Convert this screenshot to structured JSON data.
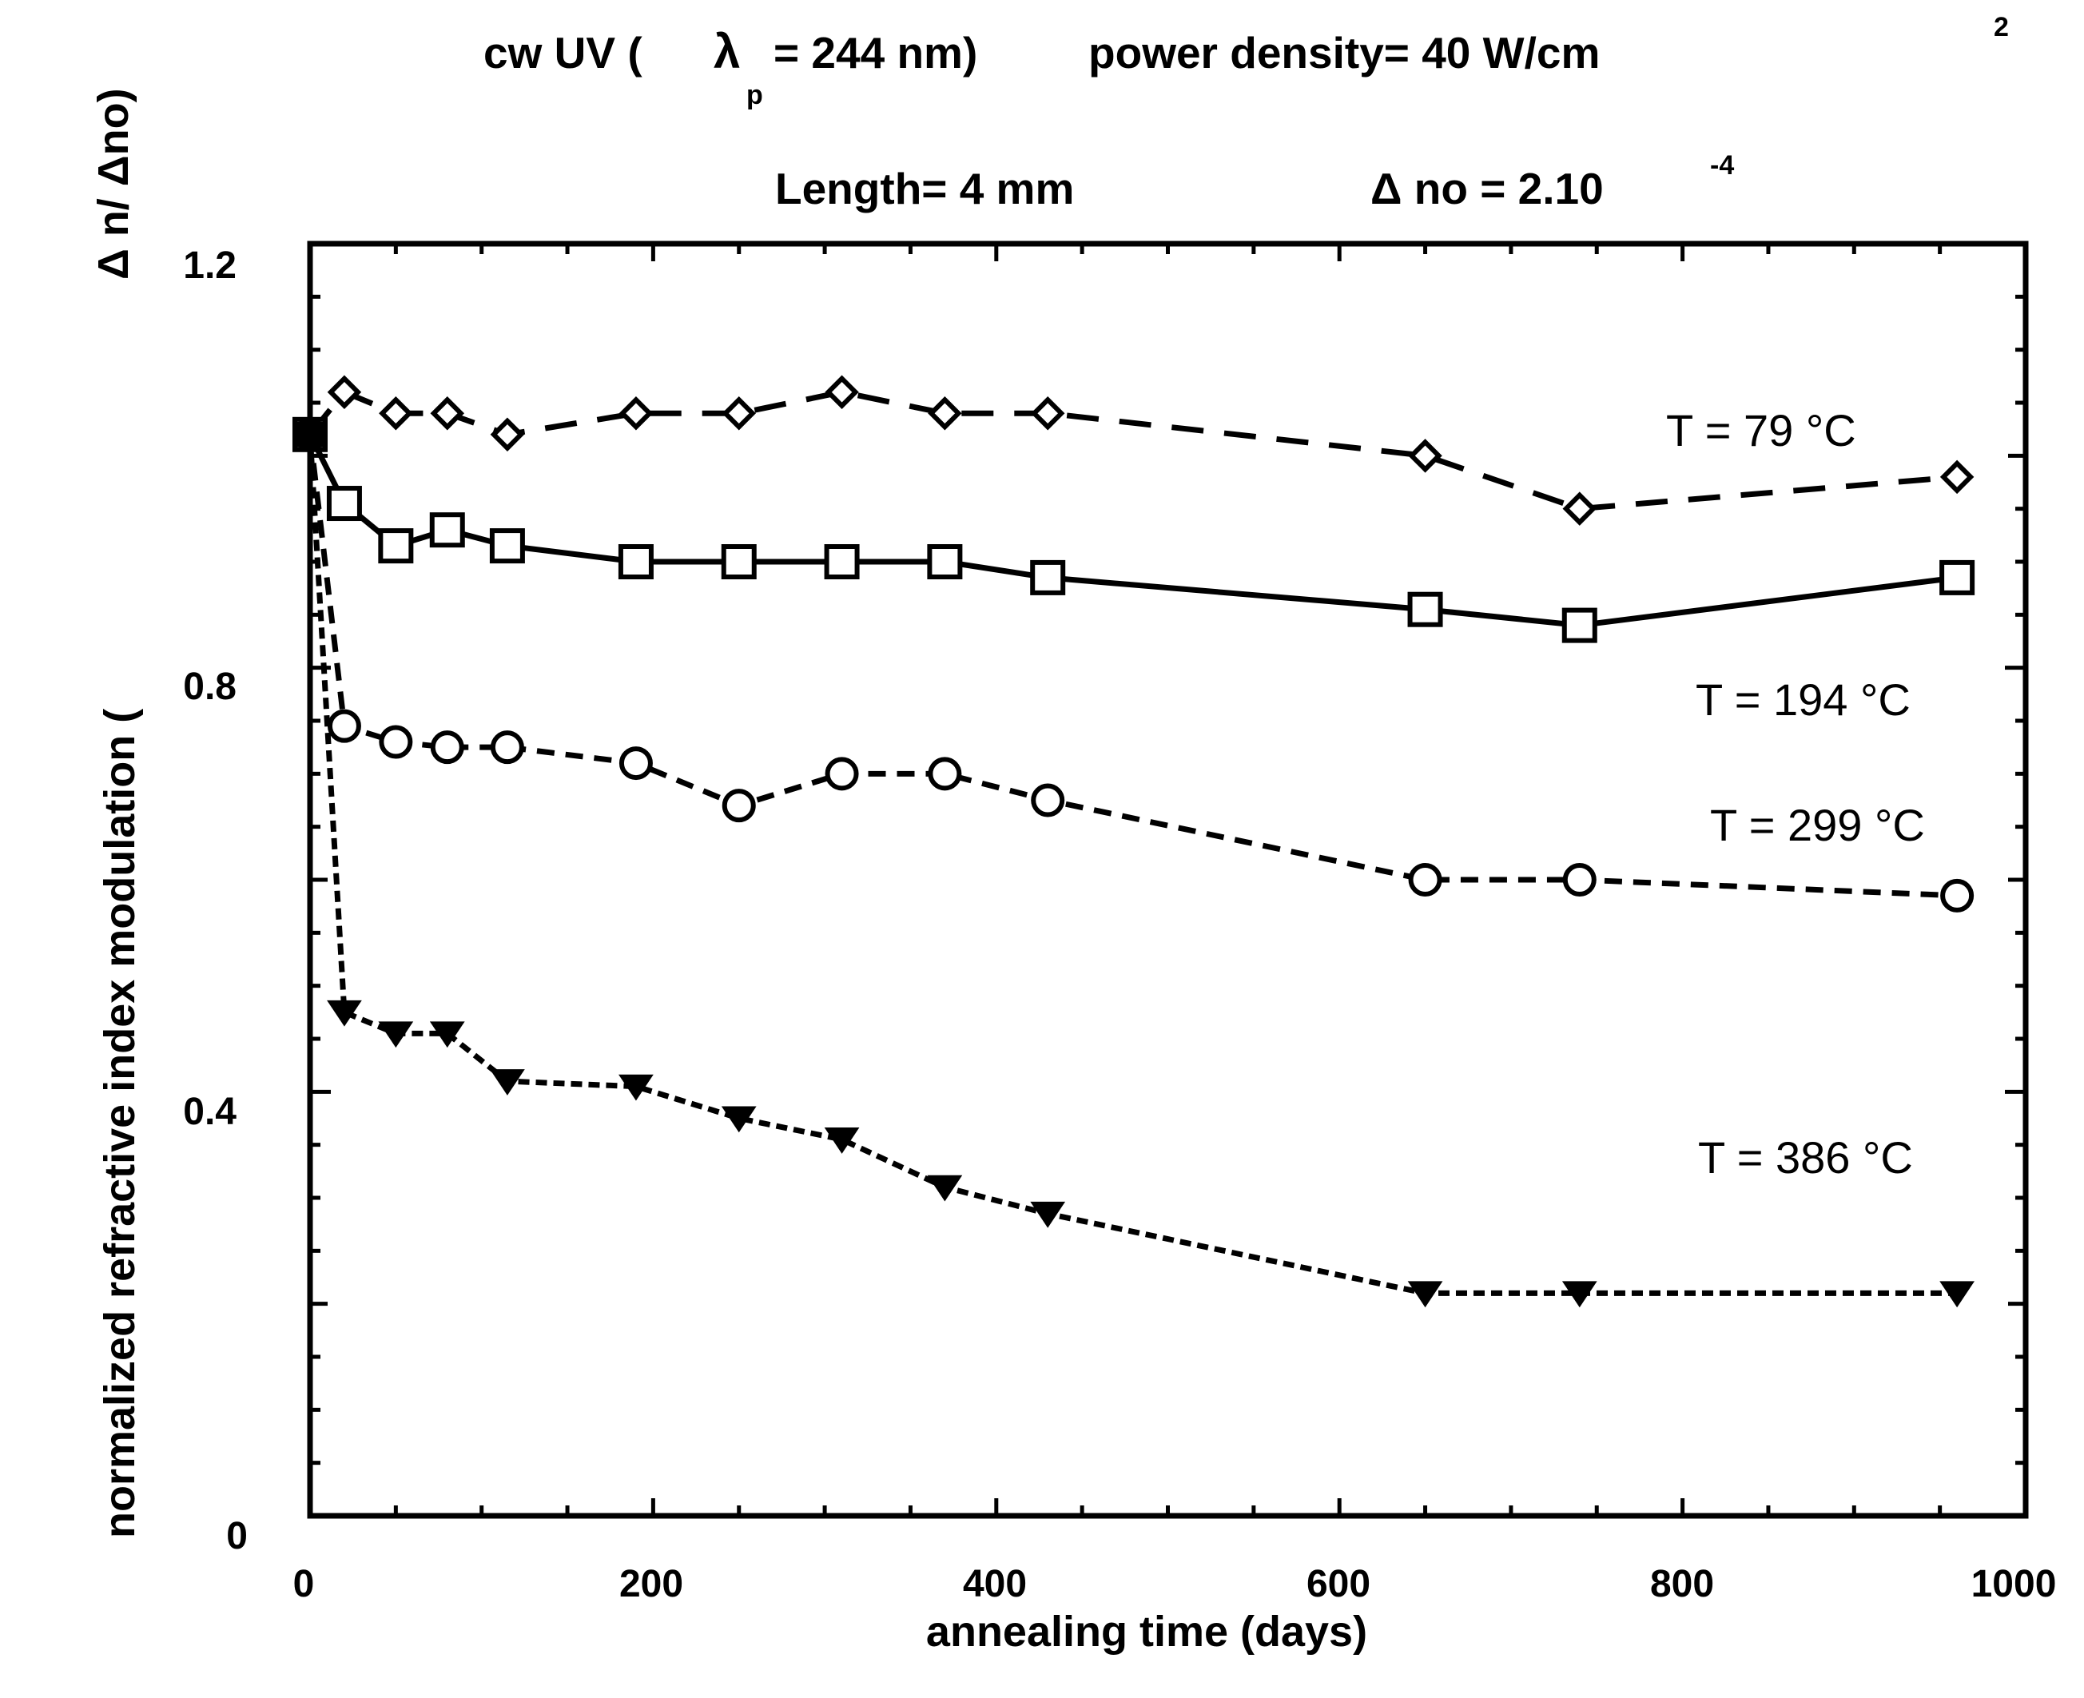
{
  "chart_data": {
    "type": "line",
    "header": {
      "line1_part1": "cw UV (",
      "lambda_symbol": "λ",
      "lambda_subscript": "p",
      "line1_part2": "= 244 nm)",
      "line1_part3": "power density= 40 W/cm",
      "line1_superscript": "2",
      "line2_part1": "Length= 4 mm",
      "line2_part2": "Δ no = 2.10",
      "line2_superscript": "-4"
    },
    "xlabel": "annealing time (days)",
    "ylabel_main": "normalized refractive index modulation (",
    "ylabel_ratio": "Δ n/  Δno)",
    "xlim": [
      0,
      1000
    ],
    "ylim": [
      0,
      1.2
    ],
    "x_ticks": [
      "0",
      "200",
      "400",
      "600",
      "800",
      "1000"
    ],
    "y_ticks": [
      "0",
      "0.4",
      "0.8",
      "1.2"
    ],
    "series": [
      {
        "name": "T = 79 °C",
        "marker": "diamond-open",
        "line": "long-dash",
        "x": [
          0,
          20,
          50,
          80,
          115,
          190,
          250,
          310,
          370,
          430,
          650,
          740,
          960
        ],
        "y": [
          1.02,
          1.06,
          1.04,
          1.04,
          1.02,
          1.04,
          1.04,
          1.06,
          1.04,
          1.04,
          1.0,
          0.95,
          0.98
        ]
      },
      {
        "name": "T = 194 °C",
        "marker": "square-open",
        "line": "solid",
        "x": [
          0,
          20,
          50,
          80,
          115,
          190,
          250,
          310,
          370,
          430,
          650,
          740,
          960
        ],
        "y": [
          1.02,
          0.955,
          0.915,
          0.93,
          0.915,
          0.9,
          0.9,
          0.9,
          0.9,
          0.885,
          0.855,
          0.84,
          0.885
        ]
      },
      {
        "name": "T = 299 °C",
        "marker": "circle-open",
        "line": "medium-dash",
        "x": [
          0,
          20,
          50,
          80,
          115,
          190,
          250,
          310,
          370,
          430,
          650,
          740,
          960
        ],
        "y": [
          1.02,
          0.745,
          0.73,
          0.725,
          0.725,
          0.71,
          0.67,
          0.7,
          0.7,
          0.675,
          0.6,
          0.6,
          0.585
        ]
      },
      {
        "name": "T = 386 °C",
        "marker": "triangle-down-filled",
        "line": "short-dash",
        "x": [
          0,
          20,
          50,
          80,
          115,
          190,
          250,
          310,
          370,
          430,
          650,
          740,
          960
        ],
        "y": [
          1.02,
          0.475,
          0.455,
          0.455,
          0.41,
          0.405,
          0.375,
          0.355,
          0.31,
          0.285,
          0.21,
          0.21,
          0.21
        ]
      }
    ]
  }
}
